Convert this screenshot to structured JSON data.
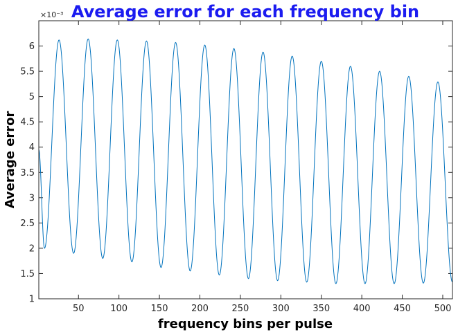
{
  "chart_data": {
    "type": "line",
    "title": "Average error for each frequency bin",
    "xlabel": "frequency bins per pulse",
    "ylabel": "Average error",
    "y_exponent_label": "×10⁻³",
    "xlim": [
      1,
      512
    ],
    "ylim": [
      1,
      6.5
    ],
    "xticks": [
      50,
      100,
      150,
      200,
      250,
      300,
      350,
      400,
      450,
      500
    ],
    "yticks": [
      1,
      1.5,
      2,
      2.5,
      3,
      3.5,
      4,
      4.5,
      5,
      5.5,
      6
    ],
    "grid": false,
    "line_color": "#0072bd",
    "series": [
      {
        "name": "",
        "x": [
          1,
          8,
          26,
          44,
          62,
          80,
          98,
          116,
          134,
          152,
          170,
          188,
          206,
          224,
          242,
          260,
          278,
          296,
          314,
          332,
          350,
          368,
          386,
          404,
          422,
          440,
          458,
          476,
          494,
          512
        ],
        "values": [
          3.95,
          2.0,
          6.12,
          1.9,
          6.14,
          1.8,
          6.12,
          1.73,
          6.1,
          1.62,
          6.07,
          1.55,
          6.02,
          1.47,
          5.95,
          1.4,
          5.88,
          1.36,
          5.8,
          1.33,
          5.7,
          1.3,
          5.6,
          1.3,
          5.5,
          1.3,
          5.4,
          1.31,
          5.29,
          1.33
        ]
      }
    ]
  }
}
